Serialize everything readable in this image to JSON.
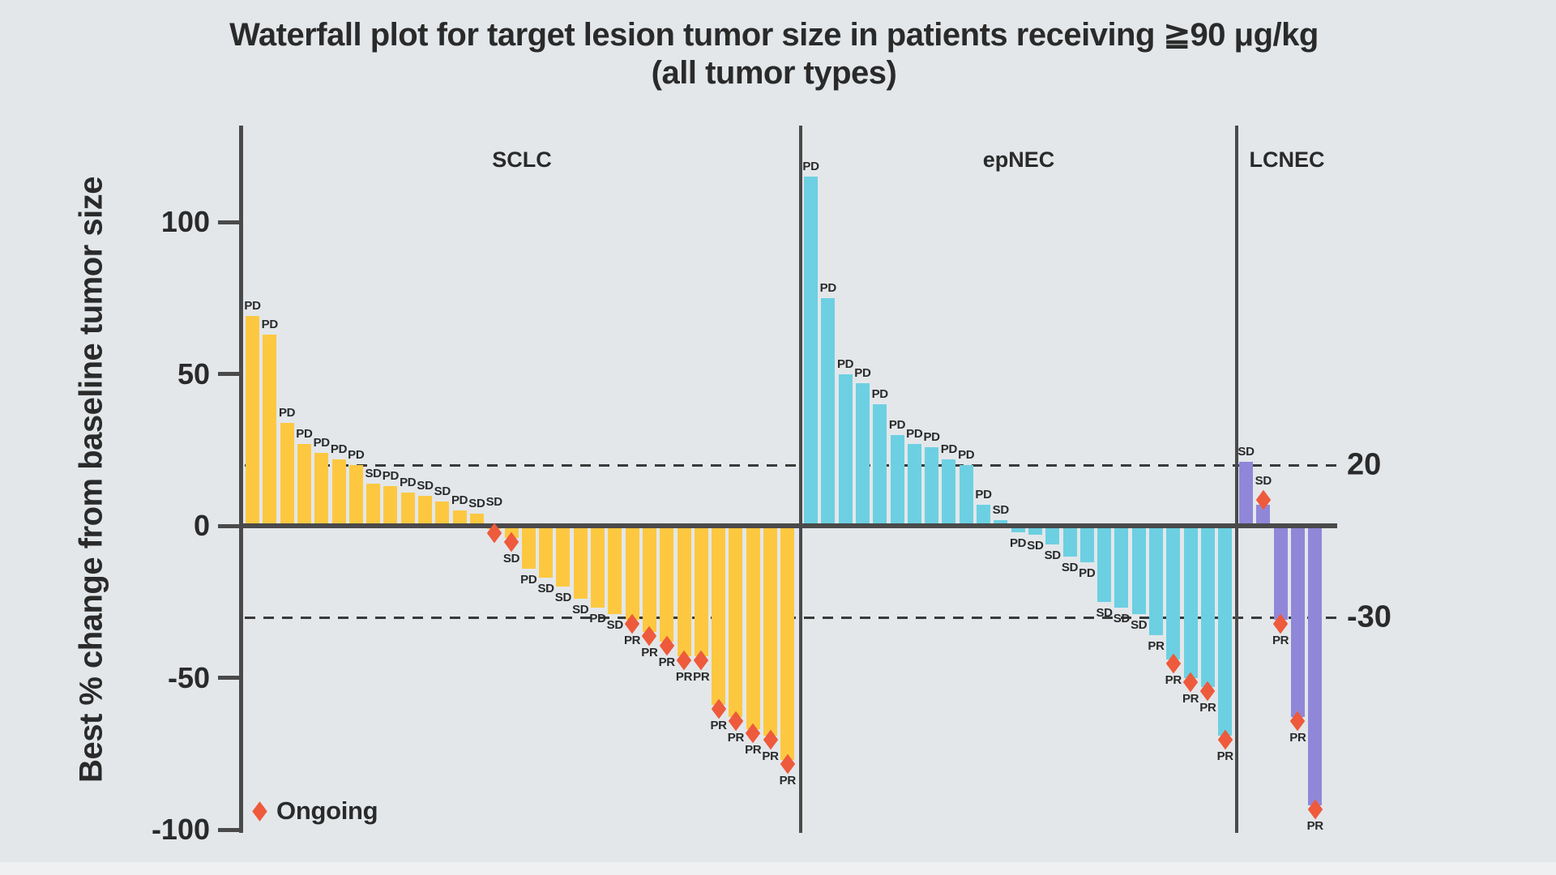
{
  "chart_data": {
    "type": "bar",
    "subtype": "waterfall",
    "title": "Waterfall plot for target lesion tumor size in patients receiving ≧90 μg/kg",
    "subtitle": "(all tumor types)",
    "ylabel": "Best % change from baseline tumor size",
    "yticks": [
      100,
      50,
      0,
      -50,
      -100
    ],
    "ylim": [
      -100,
      125
    ],
    "grid": false,
    "reference_lines": [
      {
        "value": 20,
        "label": "20",
        "style": "dashed"
      },
      {
        "value": -30,
        "label": "-30",
        "style": "dashed"
      }
    ],
    "legend": {
      "position": "bottom-left",
      "items": [
        {
          "marker": "diamond",
          "color": "#ee5a3c",
          "label": "Ongoing"
        }
      ]
    },
    "colors": {
      "background": "#e3e7ea",
      "axis": "#4a4a4a",
      "text": "#2a2a2a",
      "ongoing_marker": "#ee5a3c"
    },
    "groups": [
      {
        "name": "SCLC",
        "color": "#fdc840",
        "bars": [
          {
            "value": 69,
            "response": "PD",
            "ongoing": false
          },
          {
            "value": 63,
            "response": "PD",
            "ongoing": false
          },
          {
            "value": 34,
            "response": "PD",
            "ongoing": false
          },
          {
            "value": 27,
            "response": "PD",
            "ongoing": false
          },
          {
            "value": 24,
            "response": "PD",
            "ongoing": false
          },
          {
            "value": 22,
            "response": "PD",
            "ongoing": false
          },
          {
            "value": 20,
            "response": "PD",
            "ongoing": false
          },
          {
            "value": 14,
            "response": "SD",
            "ongoing": false
          },
          {
            "value": 13,
            "response": "PD",
            "ongoing": false
          },
          {
            "value": 11,
            "response": "PD",
            "ongoing": false
          },
          {
            "value": 10,
            "response": "SD",
            "ongoing": false
          },
          {
            "value": 8,
            "response": "SD",
            "ongoing": false
          },
          {
            "value": 5,
            "response": "PD",
            "ongoing": false
          },
          {
            "value": 4,
            "response": "SD",
            "ongoing": false
          },
          {
            "value": -1,
            "response": "SD",
            "ongoing": true
          },
          {
            "value": -4,
            "response": "SD",
            "ongoing": true
          },
          {
            "value": -14,
            "response": "PD",
            "ongoing": false
          },
          {
            "value": -17,
            "response": "SD",
            "ongoing": false
          },
          {
            "value": -20,
            "response": "SD",
            "ongoing": false
          },
          {
            "value": -24,
            "response": "SD",
            "ongoing": false
          },
          {
            "value": -27,
            "response": "PD",
            "ongoing": false
          },
          {
            "value": -29,
            "response": "SD",
            "ongoing": false
          },
          {
            "value": -31,
            "response": "PR",
            "ongoing": true
          },
          {
            "value": -35,
            "response": "PR",
            "ongoing": true
          },
          {
            "value": -38,
            "response": "PR",
            "ongoing": true
          },
          {
            "value": -43,
            "response": "PR",
            "ongoing": true
          },
          {
            "value": -43,
            "response": "PR",
            "ongoing": true
          },
          {
            "value": -59,
            "response": "PR",
            "ongoing": true
          },
          {
            "value": -63,
            "response": "PR",
            "ongoing": true
          },
          {
            "value": -67,
            "response": "PR",
            "ongoing": true
          },
          {
            "value": -69,
            "response": "PR",
            "ongoing": true
          },
          {
            "value": -77,
            "response": "PR",
            "ongoing": true
          }
        ]
      },
      {
        "name": "epNEC",
        "color": "#6cd0e2",
        "bars": [
          {
            "value": 115,
            "response": "PD",
            "ongoing": false
          },
          {
            "value": 75,
            "response": "PD",
            "ongoing": false
          },
          {
            "value": 50,
            "response": "PD",
            "ongoing": false
          },
          {
            "value": 47,
            "response": "PD",
            "ongoing": false
          },
          {
            "value": 40,
            "response": "PD",
            "ongoing": false
          },
          {
            "value": 30,
            "response": "PD",
            "ongoing": false
          },
          {
            "value": 27,
            "response": "PD",
            "ongoing": false
          },
          {
            "value": 26,
            "response": "PD",
            "ongoing": false
          },
          {
            "value": 22,
            "response": "PD",
            "ongoing": false
          },
          {
            "value": 20,
            "response": "PD",
            "ongoing": false
          },
          {
            "value": 7,
            "response": "PD",
            "ongoing": false
          },
          {
            "value": 2,
            "response": "SD",
            "ongoing": false
          },
          {
            "value": -2,
            "response": "PD",
            "ongoing": false
          },
          {
            "value": -3,
            "response": "SD",
            "ongoing": false
          },
          {
            "value": -6,
            "response": "SD",
            "ongoing": false
          },
          {
            "value": -10,
            "response": "SD",
            "ongoing": false
          },
          {
            "value": -12,
            "response": "PD",
            "ongoing": false
          },
          {
            "value": -25,
            "response": "SD",
            "ongoing": false
          },
          {
            "value": -27,
            "response": "SD",
            "ongoing": false
          },
          {
            "value": -29,
            "response": "SD",
            "ongoing": false
          },
          {
            "value": -36,
            "response": "PR",
            "ongoing": false
          },
          {
            "value": -44,
            "response": "PR",
            "ongoing": true
          },
          {
            "value": -50,
            "response": "PR",
            "ongoing": true
          },
          {
            "value": -53,
            "response": "PR",
            "ongoing": true
          },
          {
            "value": -69,
            "response": "PR",
            "ongoing": true
          }
        ]
      },
      {
        "name": "LCNEC",
        "color": "#9187d8",
        "bars": [
          {
            "value": 21,
            "response": "SD",
            "ongoing": false
          },
          {
            "value": 7,
            "response": "SD",
            "ongoing": true
          },
          {
            "value": -31,
            "response": "PR",
            "ongoing": true
          },
          {
            "value": -63,
            "response": "PR",
            "ongoing": true
          },
          {
            "value": -92,
            "response": "PR",
            "ongoing": true
          }
        ]
      }
    ]
  }
}
